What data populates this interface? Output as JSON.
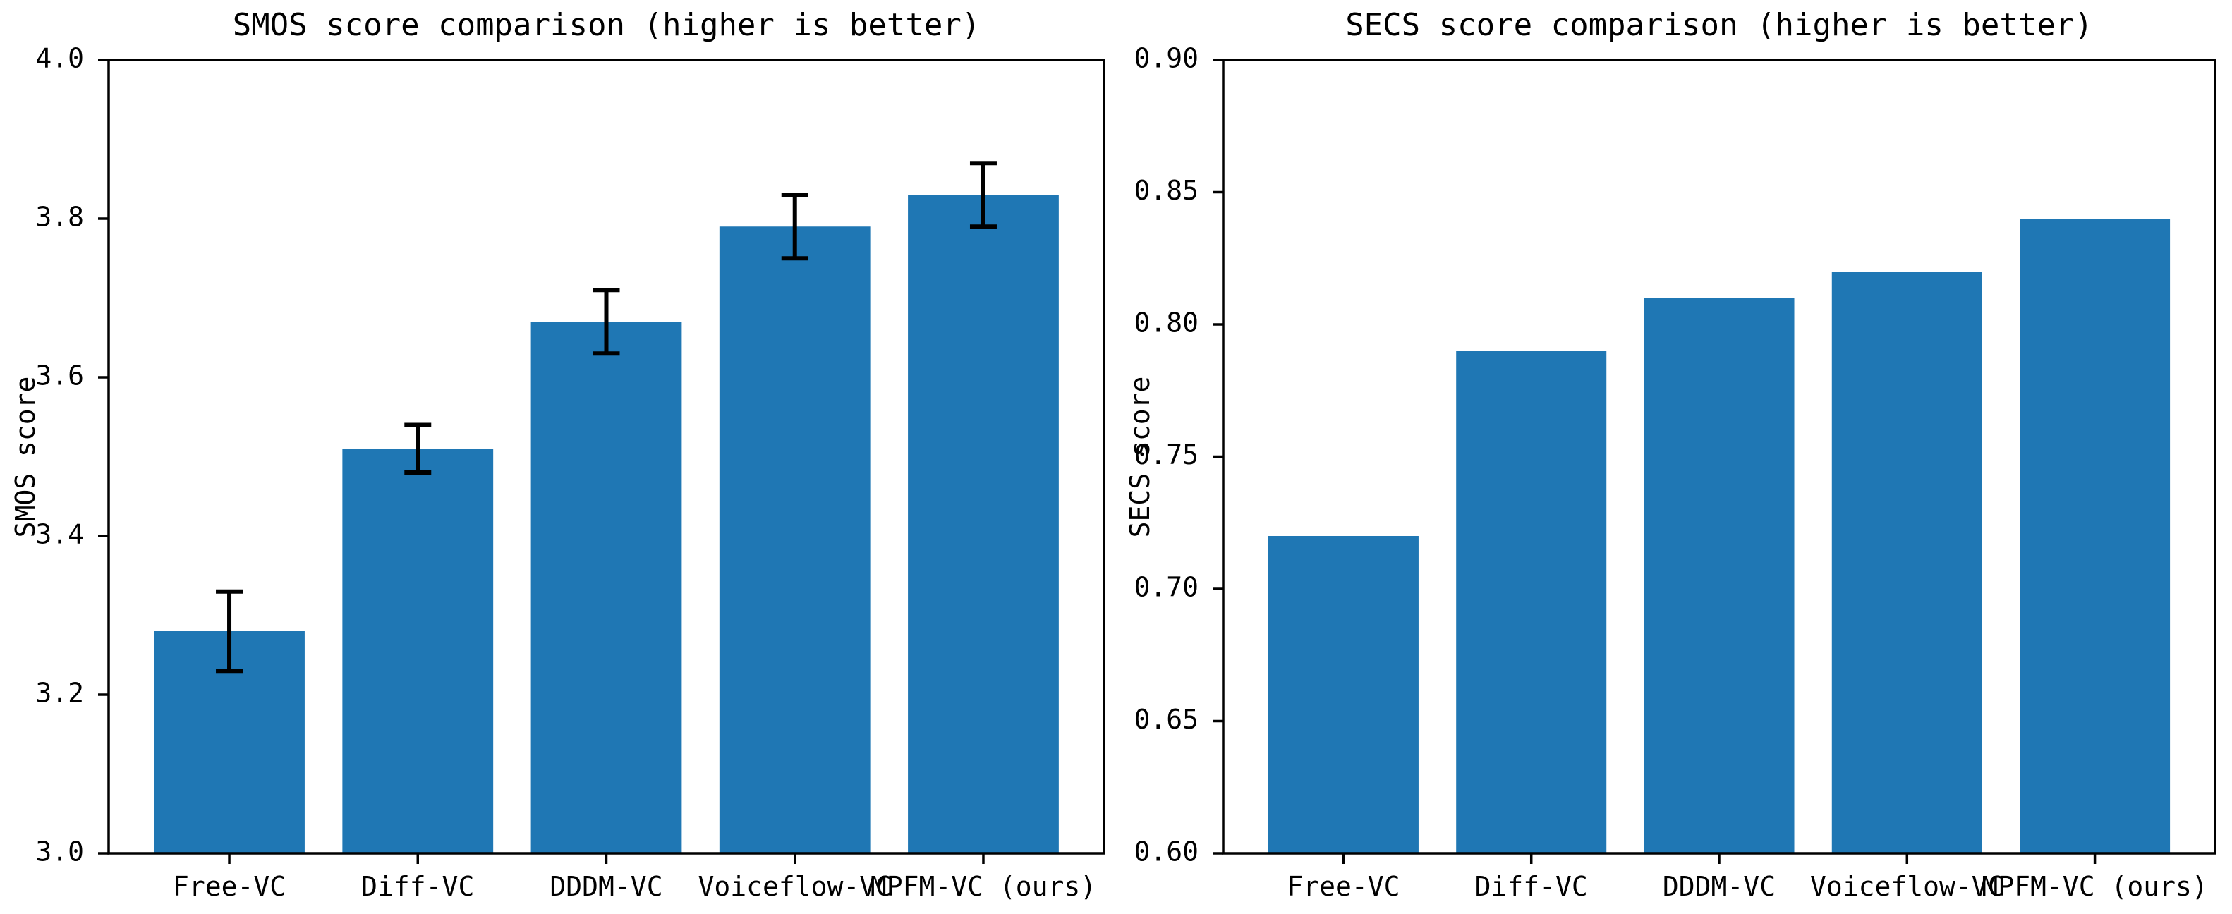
{
  "figure": {
    "background_color": "#ffffff",
    "bar_color": "#1f77b4",
    "axis_color": "#000000",
    "error_bar_color": "#000000"
  },
  "chart_data": [
    {
      "type": "bar",
      "title": "SMOS score comparison (higher is better)",
      "xlabel": "",
      "ylabel": "SMOS score",
      "categories": [
        "Free-VC",
        "Diff-VC",
        "DDDM-VC",
        "Voiceflow-VC",
        "MPFM-VC (ours)"
      ],
      "values": [
        3.28,
        3.51,
        3.67,
        3.79,
        3.83
      ],
      "error_bars": [
        0.05,
        0.03,
        0.04,
        0.04,
        0.04
      ],
      "ylim": [
        3.0,
        4.0
      ],
      "yticks": [
        3.0,
        3.2,
        3.4,
        3.6,
        3.8,
        4.0
      ],
      "ytick_labels": [
        "3.0",
        "3.2",
        "3.4",
        "3.6",
        "3.8",
        "4.0"
      ],
      "bar_color": "#1f77b4",
      "grid": false,
      "legend": null
    },
    {
      "type": "bar",
      "title": "SECS score comparison (higher is better)",
      "xlabel": "",
      "ylabel": "SECS score",
      "categories": [
        "Free-VC",
        "Diff-VC",
        "DDDM-VC",
        "Voiceflow-VC",
        "MPFM-VC (ours)"
      ],
      "values": [
        0.72,
        0.79,
        0.81,
        0.82,
        0.84
      ],
      "error_bars": null,
      "ylim": [
        0.6,
        0.9
      ],
      "yticks": [
        0.6,
        0.65,
        0.7,
        0.75,
        0.8,
        0.85,
        0.9
      ],
      "ytick_labels": [
        "0.60",
        "0.65",
        "0.70",
        "0.75",
        "0.80",
        "0.85",
        "0.90"
      ],
      "bar_color": "#1f77b4",
      "grid": false,
      "legend": null
    }
  ]
}
